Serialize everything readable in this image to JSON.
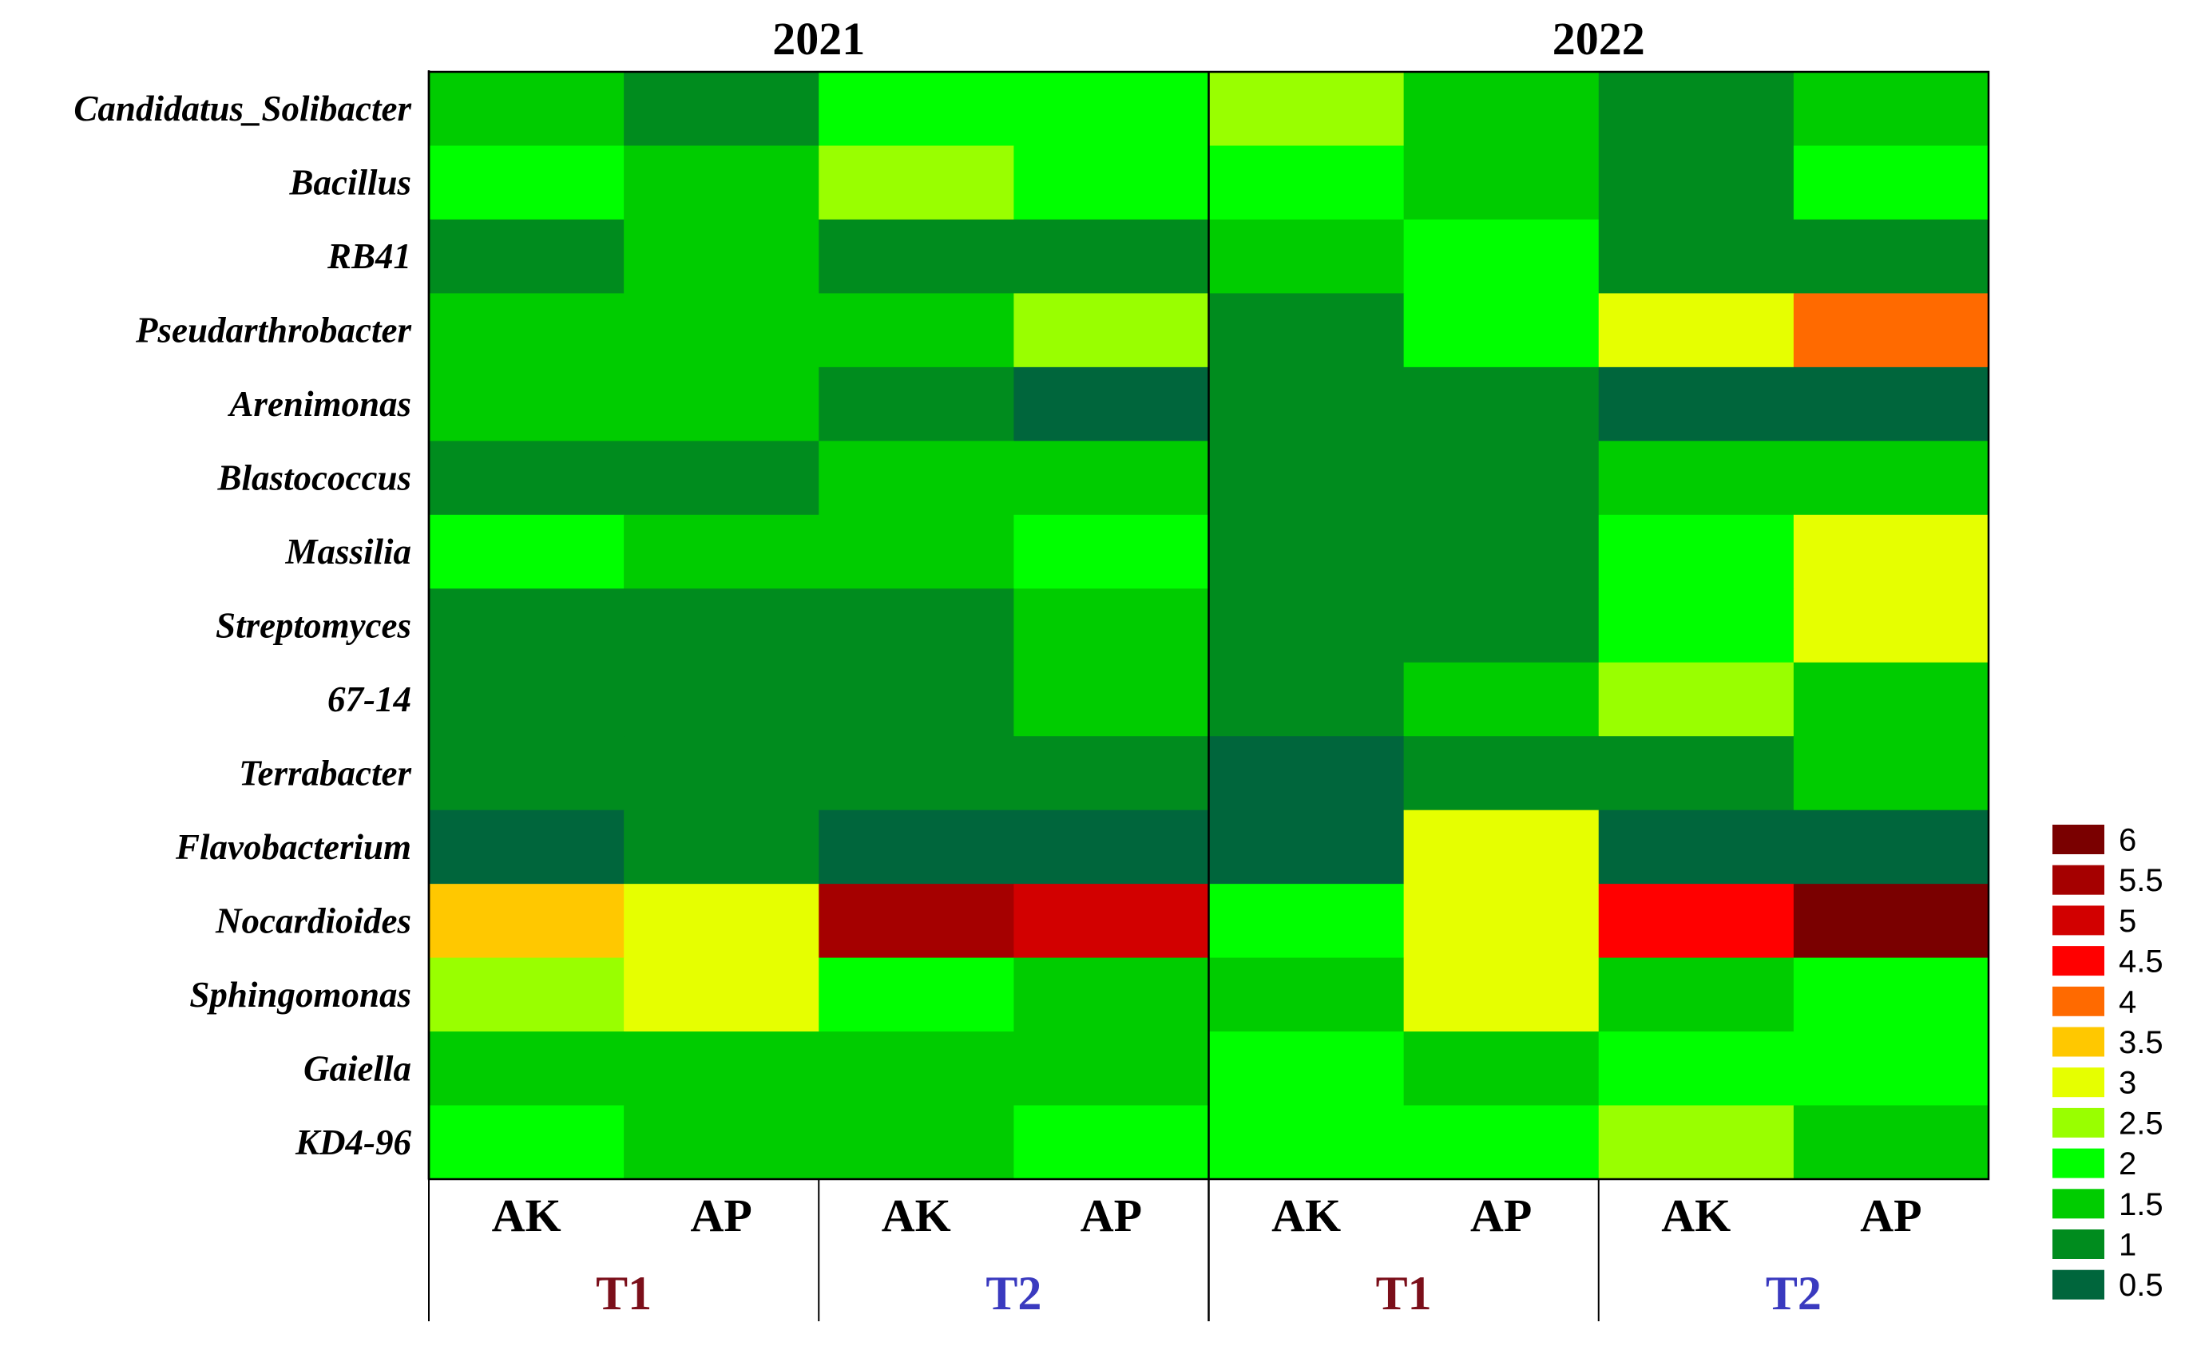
{
  "chart_data": {
    "type": "heatmap",
    "title": "",
    "years": [
      "2021",
      "2022"
    ],
    "columns": [
      "AK",
      "AP",
      "AK",
      "AP",
      "AK",
      "AP",
      "AK",
      "AP"
    ],
    "groups": [
      {
        "label": "T1",
        "color": "#7b0f1a"
      },
      {
        "label": "T2",
        "color": "#3a3abf"
      },
      {
        "label": "T1",
        "color": "#7b0f1a"
      },
      {
        "label": "T2",
        "color": "#3a3abf"
      }
    ],
    "rows": [
      "Candidatus_Solibacter",
      "Bacillus",
      "RB41",
      "Pseudarthrobacter",
      "Arenimonas",
      "Blastococcus",
      "Massilia",
      "Streptomyces",
      "67-14",
      "Terrabacter",
      "Flavobacterium",
      "Nocardioides",
      "Sphingomonas",
      "Gaiella",
      "KD4-96"
    ],
    "values": [
      [
        1.5,
        1.2,
        1.8,
        1.8,
        2.6,
        1.3,
        0.9,
        1.5
      ],
      [
        1.8,
        1.3,
        2.3,
        1.9,
        1.9,
        1.3,
        0.9,
        1.9
      ],
      [
        1.2,
        1.7,
        1.0,
        1.1,
        1.3,
        1.9,
        0.9,
        0.9
      ],
      [
        1.7,
        1.7,
        1.6,
        2.6,
        1.0,
        2.2,
        2.9,
        4.0
      ],
      [
        1.7,
        1.7,
        0.8,
        0.6,
        0.8,
        0.9,
        0.7,
        0.6
      ],
      [
        1.1,
        1.0,
        1.5,
        1.5,
        0.8,
        1.2,
        1.3,
        1.6
      ],
      [
        1.9,
        1.7,
        1.4,
        1.9,
        0.8,
        1.2,
        1.9,
        3.0
      ],
      [
        1.1,
        1.2,
        1.2,
        1.3,
        1.2,
        0.9,
        2.2,
        2.8
      ],
      [
        1.1,
        1.2,
        1.2,
        1.3,
        1.1,
        1.3,
        2.4,
        1.4
      ],
      [
        0.9,
        0.9,
        1.2,
        1.1,
        0.7,
        0.8,
        1.0,
        1.6
      ],
      [
        0.6,
        0.8,
        0.4,
        0.4,
        0.6,
        3.0,
        0.5,
        0.5
      ],
      [
        3.4,
        2.9,
        5.5,
        5.0,
        2.2,
        3.0,
        4.7,
        6.0
      ],
      [
        2.7,
        3.1,
        1.9,
        1.3,
        1.3,
        2.9,
        1.5,
        1.8
      ],
      [
        1.5,
        1.3,
        1.6,
        1.3,
        2.2,
        1.6,
        2.1,
        1.8
      ],
      [
        1.8,
        1.6,
        1.6,
        1.9,
        1.8,
        2.2,
        2.5,
        1.4
      ]
    ],
    "scale": [
      {
        "label": "6",
        "color": "#7a0000"
      },
      {
        "label": "5.5",
        "color": "#a50000"
      },
      {
        "label": "5",
        "color": "#d20000"
      },
      {
        "label": "4.5",
        "color": "#ff0000"
      },
      {
        "label": "4",
        "color": "#ff6a00"
      },
      {
        "label": "3.5",
        "color": "#ffc800"
      },
      {
        "label": "3",
        "color": "#e6ff00"
      },
      {
        "label": "2.5",
        "color": "#99ff00"
      },
      {
        "label": "2",
        "color": "#00ff00"
      },
      {
        "label": "1.5",
        "color": "#00cc00"
      },
      {
        "label": "1",
        "color": "#008c1e"
      },
      {
        "label": "0.5",
        "color": "#00663c"
      }
    ],
    "legend_position": "bottom-right",
    "grid": false
  }
}
